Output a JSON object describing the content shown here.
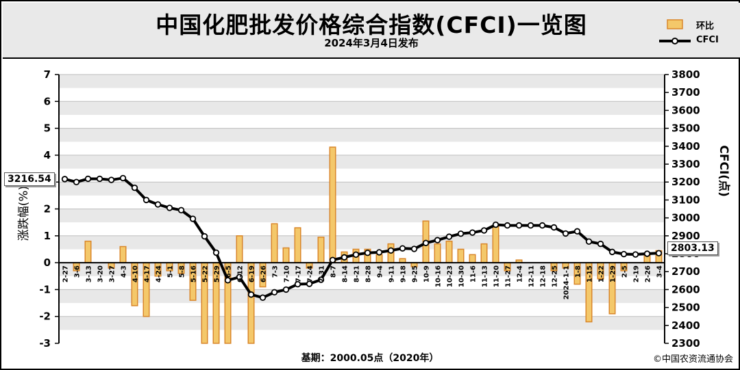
{
  "header": {
    "title": "中国化肥批发价格综合指数(CFCI)一览图",
    "subtitle": "2024年3月4日发布"
  },
  "legend": {
    "bar_label": "环比",
    "line_label": "CFCI"
  },
  "footer": {
    "base_note": "基期：2000.05点（2020年）",
    "credit": "©中国农资流通协会"
  },
  "callouts": {
    "first": "3216.54",
    "last": "2803.13"
  },
  "colors": {
    "bar_fill": "#f4c86a",
    "bar_edge": "#d9862a",
    "line": "#000000",
    "plot_band": "#e8e8e8",
    "header_bg": "#e9e9e9"
  },
  "chart_data": {
    "type": "bar+line",
    "categories": [
      "2-27",
      "3-6",
      "3-13",
      "3-20",
      "3-27",
      "4-3",
      "4-10",
      "4-17",
      "4-24",
      "5-1",
      "5-8",
      "5-16",
      "5-22",
      "5-29",
      "6-5",
      "6-12",
      "6-19",
      "6-26",
      "7-3",
      "7-10",
      "7-17",
      "7-24",
      "7-31",
      "8-7",
      "8-14",
      "8-21",
      "8-28",
      "9-4",
      "9-11",
      "9-18",
      "9-25",
      "10-9",
      "10-16",
      "10-23",
      "10-30",
      "11-6",
      "11-13",
      "11-20",
      "11-27",
      "12-4",
      "12-11",
      "12-18",
      "12-25",
      "2024-1-1",
      "1-8",
      "1-15",
      "1-22",
      "1-29",
      "2-5",
      "2-19",
      "2-26",
      "3-4"
    ],
    "series": [
      {
        "name": "环比",
        "axis": "left",
        "type": "bar",
        "values": [
          0,
          -0.3,
          0.8,
          0,
          -0.2,
          0.6,
          -1.6,
          -2,
          -0.5,
          -0.3,
          -0.4,
          -1.4,
          -3,
          -3,
          -3,
          1,
          -3,
          -0.9,
          1.45,
          0.55,
          1.3,
          -0.2,
          0.95,
          4.3,
          0.4,
          0.5,
          0.5,
          0.3,
          0.7,
          0.15,
          -0.15,
          1.55,
          0.7,
          0.8,
          0.5,
          0.3,
          0.7,
          1.4,
          -0.3,
          0.1,
          0,
          0,
          -0.3,
          -0.2,
          -0.8,
          -2.2,
          -0.6,
          -1.9,
          -0.3,
          0,
          0.35,
          0.45
        ]
      },
      {
        "name": "CFCI",
        "axis": "right",
        "type": "line",
        "values": [
          3216.54,
          3200,
          3218,
          3218,
          3212,
          3222,
          3168,
          3100,
          3075,
          3056,
          3043,
          2995,
          2897,
          2806,
          2652,
          2670,
          2572,
          2555,
          2585,
          2600,
          2630,
          2632,
          2655,
          2765,
          2780,
          2795,
          2805,
          2808,
          2818,
          2830,
          2827,
          2860,
          2876,
          2895,
          2912,
          2918,
          2930,
          2962,
          2958,
          2958,
          2958,
          2958,
          2947,
          2913,
          2925,
          2868,
          2855,
          2810,
          2798,
          2796,
          2800,
          2803.13
        ]
      }
    ],
    "left_axis": {
      "label": "涨跌幅(%)",
      "range": [
        -3,
        7
      ],
      "ticks": [
        -3,
        -2,
        -1,
        0,
        1,
        2,
        3,
        4,
        5,
        6,
        7
      ]
    },
    "right_axis": {
      "label": "CFCI(点)",
      "range": [
        2300,
        3800
      ],
      "ticks": [
        2300,
        2400,
        2500,
        2600,
        2700,
        2800,
        2900,
        3000,
        3100,
        3200,
        3300,
        3400,
        3500,
        3600,
        3700,
        3800
      ]
    },
    "grid": "horizontal bands",
    "legend_position": "top-right"
  }
}
